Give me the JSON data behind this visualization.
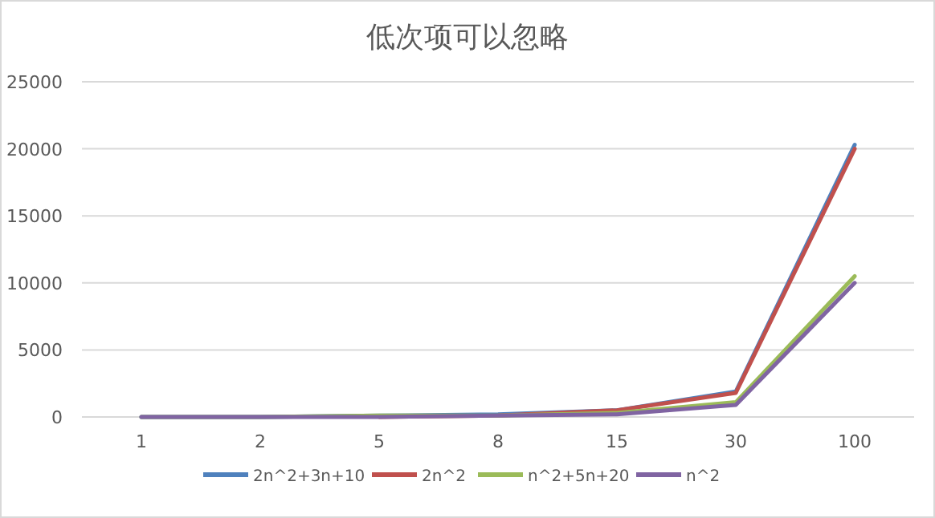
{
  "chart_data": {
    "type": "line",
    "title": "低次项可以忽略",
    "categories": [
      "1",
      "2",
      "5",
      "8",
      "15",
      "30",
      "100"
    ],
    "series": [
      {
        "name": "2n^2+3n+10",
        "color": "#4f81bd",
        "values": [
          0,
          0,
          100,
          200,
          500,
          1900,
          20300
        ]
      },
      {
        "name": "2n^2",
        "color": "#c0504d",
        "values": [
          null,
          null,
          0,
          100,
          500,
          1800,
          20000
        ]
      },
      {
        "name": "n^2+5n+20",
        "color": "#9bbb59",
        "values": [
          0,
          0,
          100,
          100,
          300,
          1100,
          10500
        ]
      },
      {
        "name": "n^2",
        "color": "#8064a2",
        "values": [
          0,
          0,
          0,
          100,
          200,
          900,
          10000
        ]
      }
    ],
    "ylim": [
      0,
      25000
    ],
    "yticks": [
      0,
      5000,
      10000,
      15000,
      20000,
      25000
    ],
    "grid": "y",
    "legend": "bottom",
    "marker": "none",
    "line_style": "solid"
  }
}
